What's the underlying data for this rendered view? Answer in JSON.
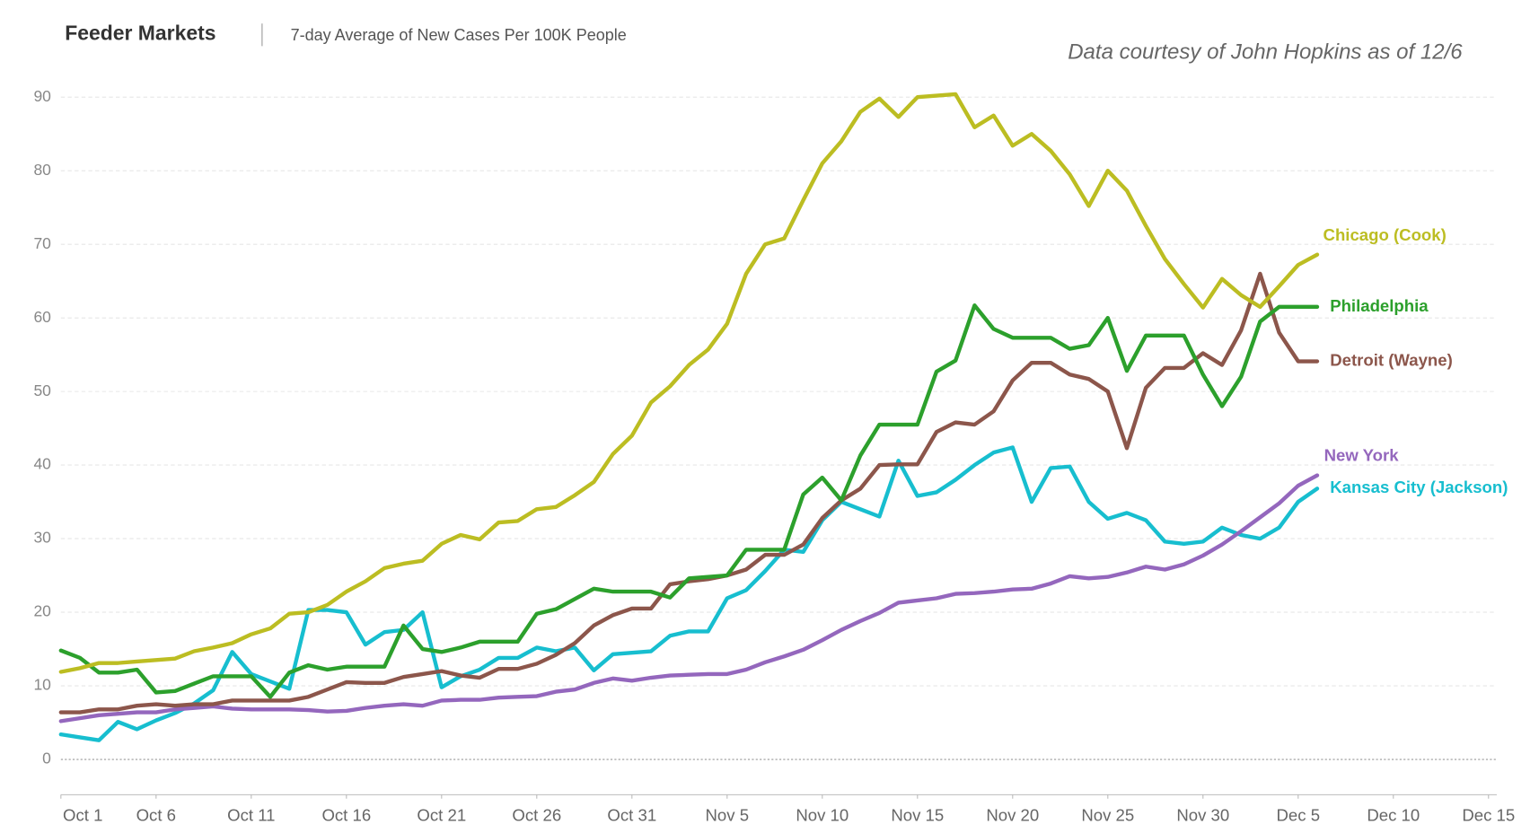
{
  "chart_data": {
    "type": "line",
    "title": "Feeder Markets",
    "subtitle": "7-day Average of New Cases Per 100K People",
    "annotation": "Data courtesy of John Hopkins as of 12/6",
    "x": [
      "Oct 1",
      "Oct 2",
      "Oct 3",
      "Oct 4",
      "Oct 5",
      "Oct 6",
      "Oct 7",
      "Oct 8",
      "Oct 9",
      "Oct 10",
      "Oct 11",
      "Oct 12",
      "Oct 13",
      "Oct 14",
      "Oct 15",
      "Oct 16",
      "Oct 17",
      "Oct 18",
      "Oct 19",
      "Oct 20",
      "Oct 21",
      "Oct 22",
      "Oct 23",
      "Oct 24",
      "Oct 25",
      "Oct 26",
      "Oct 27",
      "Oct 28",
      "Oct 29",
      "Oct 30",
      "Oct 31",
      "Nov 1",
      "Nov 2",
      "Nov 3",
      "Nov 4",
      "Nov 5",
      "Nov 6",
      "Nov 7",
      "Nov 8",
      "Nov 9",
      "Nov 10",
      "Nov 11",
      "Nov 12",
      "Nov 13",
      "Nov 14",
      "Nov 15",
      "Nov 16",
      "Nov 17",
      "Nov 18",
      "Nov 19",
      "Nov 20",
      "Nov 21",
      "Nov 22",
      "Nov 23",
      "Nov 24",
      "Nov 25",
      "Nov 26",
      "Nov 27",
      "Nov 28",
      "Nov 29",
      "Nov 30",
      "Dec 1",
      "Dec 2",
      "Dec 3",
      "Dec 4",
      "Dec 5",
      "Dec 6"
    ],
    "series": [
      {
        "name": "Chicago (Cook)",
        "color": "#bcbd22",
        "values": [
          11.9,
          12.4,
          13.1,
          13.1,
          13.3,
          13.5,
          13.7,
          14.7,
          15.2,
          15.8,
          17.0,
          17.8,
          19.8,
          20.0,
          21.0,
          22.8,
          24.2,
          26.0,
          26.6,
          27.0,
          29.3,
          30.5,
          29.9,
          32.2,
          32.4,
          34.0,
          34.3,
          35.9,
          37.7,
          41.5,
          44.0,
          48.5,
          50.7,
          53.6,
          55.7,
          59.2,
          66.0,
          70.0,
          70.8,
          76.0,
          81.0,
          84.0,
          88.0,
          89.8,
          87.3,
          90.0,
          90.2,
          90.4,
          85.9,
          87.5,
          83.4,
          85.0,
          82.7,
          79.5,
          75.2,
          80.0,
          77.3,
          72.5,
          68.0,
          64.6,
          61.4,
          65.3,
          63.1,
          61.5,
          64.3,
          67.2,
          68.6
        ]
      },
      {
        "name": "Philadelphia",
        "color": "#2ca02c",
        "values": [
          14.8,
          13.8,
          11.8,
          11.8,
          12.2,
          9.1,
          9.3,
          10.3,
          11.3,
          11.3,
          11.3,
          8.5,
          11.8,
          12.8,
          12.2,
          12.6,
          12.6,
          12.6,
          18.2,
          15.0,
          14.6,
          15.2,
          16.0,
          16.0,
          16.0,
          19.8,
          20.4,
          21.8,
          23.2,
          22.8,
          22.8,
          22.8,
          22.0,
          24.6,
          24.8,
          25.0,
          28.5,
          28.5,
          28.5,
          36.0,
          38.3,
          35.2,
          41.3,
          45.5,
          45.5,
          45.5,
          52.7,
          54.2,
          61.7,
          58.5,
          57.3,
          57.3,
          57.3,
          55.8,
          56.3,
          60.0,
          52.8,
          57.6,
          57.6,
          57.6,
          52.3,
          48.0,
          52.0,
          59.5,
          61.5,
          61.5,
          61.5
        ]
      },
      {
        "name": "Detroit (Wayne)",
        "color": "#8c564b",
        "values": [
          6.4,
          6.4,
          6.8,
          6.8,
          7.3,
          7.5,
          7.3,
          7.5,
          7.5,
          8.0,
          8.0,
          8.0,
          8.0,
          8.5,
          9.5,
          10.5,
          10.4,
          10.4,
          11.2,
          11.6,
          12.0,
          11.4,
          11.1,
          12.3,
          12.3,
          13.0,
          14.2,
          15.8,
          18.2,
          19.6,
          20.5,
          20.5,
          23.8,
          24.2,
          24.5,
          25.0,
          25.8,
          27.8,
          27.8,
          29.2,
          32.8,
          35.2,
          36.8,
          40.0,
          40.1,
          40.1,
          44.5,
          45.8,
          45.5,
          47.3,
          51.5,
          53.9,
          53.9,
          52.3,
          51.7,
          50.0,
          42.3,
          50.5,
          53.2,
          53.2,
          55.2,
          53.6,
          58.3,
          66.0,
          58.0,
          54.1,
          54.1
        ]
      },
      {
        "name": "New York",
        "color": "#9467bd",
        "values": [
          5.2,
          5.6,
          6.0,
          6.2,
          6.4,
          6.4,
          6.8,
          7.0,
          7.2,
          6.9,
          6.8,
          6.8,
          6.8,
          6.7,
          6.5,
          6.6,
          7.0,
          7.3,
          7.5,
          7.3,
          8.0,
          8.1,
          8.1,
          8.4,
          8.5,
          8.6,
          9.2,
          9.5,
          10.4,
          11.0,
          10.7,
          11.1,
          11.4,
          11.5,
          11.6,
          11.6,
          12.2,
          13.2,
          14.0,
          14.9,
          16.2,
          17.6,
          18.8,
          19.9,
          21.3,
          21.6,
          21.9,
          22.5,
          22.6,
          22.8,
          23.1,
          23.2,
          23.9,
          24.9,
          24.6,
          24.8,
          25.4,
          26.2,
          25.8,
          26.5,
          27.7,
          29.2,
          31.0,
          32.9,
          34.8,
          37.2,
          38.6
        ]
      },
      {
        "name": "Kansas City (Jackson)",
        "color": "#17becf",
        "values": [
          3.4,
          3.0,
          2.6,
          5.1,
          4.1,
          5.3,
          6.3,
          7.6,
          9.4,
          14.6,
          11.6,
          10.6,
          9.6,
          20.3,
          20.3,
          20.0,
          15.6,
          17.3,
          17.6,
          20.0,
          9.8,
          11.3,
          12.2,
          13.8,
          13.8,
          15.2,
          14.7,
          15.2,
          12.1,
          14.3,
          14.5,
          14.7,
          16.8,
          17.4,
          17.4,
          21.9,
          23.0,
          25.6,
          28.5,
          28.2,
          32.5,
          35.0,
          34.0,
          33.0,
          40.6,
          35.8,
          36.3,
          38.0,
          40.0,
          41.7,
          42.4,
          35.0,
          39.6,
          39.8,
          35.0,
          32.7,
          33.5,
          32.5,
          29.6,
          29.3,
          29.6,
          31.5,
          30.5,
          30.0,
          31.5,
          35.0,
          36.8
        ]
      }
    ],
    "xlim": [
      "Oct 1",
      "Dec 16"
    ],
    "xticks": [
      "Oct 1",
      "Oct 6",
      "Oct 11",
      "Oct 16",
      "Oct 21",
      "Oct 26",
      "Oct 31",
      "Nov 5",
      "Nov 10",
      "Nov 15",
      "Nov 20",
      "Nov 25",
      "Nov 30",
      "Dec 5",
      "Dec 10",
      "Dec 15"
    ],
    "ylim": [
      -4.8,
      94
    ],
    "yticks": [
      0,
      10,
      20,
      30,
      40,
      50,
      60,
      70,
      80,
      90
    ],
    "grid": true,
    "legend": "line-end"
  }
}
